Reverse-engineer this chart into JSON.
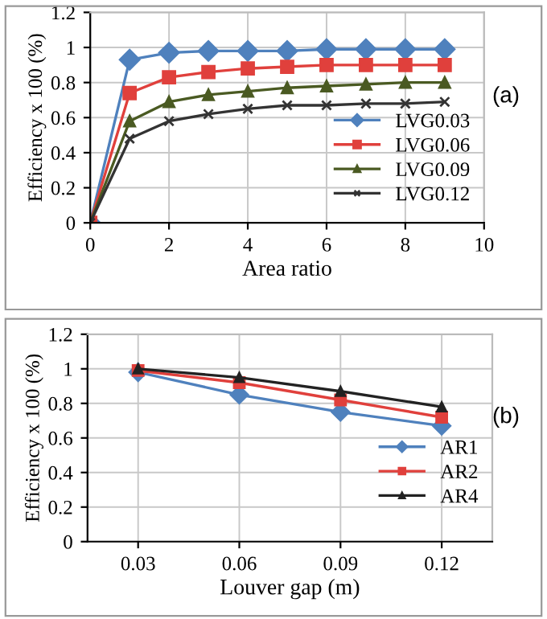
{
  "chart_data": [
    {
      "type": "line",
      "xlabel": "Area ratio",
      "ylabel": "Efficiency x 100 (%)",
      "x": [
        0,
        1,
        2,
        3,
        4,
        5,
        6,
        7,
        8,
        9
      ],
      "xlim": [
        0,
        10
      ],
      "xticks": [
        0,
        2,
        4,
        6,
        8,
        10
      ],
      "ylim": [
        0,
        1.2
      ],
      "yticks": [
        0,
        0.2,
        0.4,
        0.6,
        0.8,
        1,
        1.2
      ],
      "grid": true,
      "legend": "right",
      "annotations": [
        "(a)"
      ],
      "series": [
        {
          "name": "LVG0.03",
          "color": "#4f81bd",
          "marker": "diamond",
          "values": [
            0,
            0.93,
            0.97,
            0.98,
            0.98,
            0.98,
            0.99,
            0.99,
            0.99,
            0.99
          ]
        },
        {
          "name": "LVG0.06",
          "color": "#e0403c",
          "marker": "square",
          "values": [
            0,
            0.74,
            0.83,
            0.86,
            0.88,
            0.89,
            0.9,
            0.9,
            0.9,
            0.9
          ]
        },
        {
          "name": "LVG0.09",
          "color": "#4a5a22",
          "marker": "triangle",
          "values": [
            0,
            0.58,
            0.69,
            0.73,
            0.75,
            0.77,
            0.78,
            0.79,
            0.8,
            0.8
          ]
        },
        {
          "name": "LVG0.12",
          "color": "#333333",
          "marker": "cross",
          "values": [
            0,
            0.48,
            0.58,
            0.62,
            0.65,
            0.67,
            0.67,
            0.68,
            0.68,
            0.69
          ]
        }
      ]
    },
    {
      "type": "line",
      "xlabel": "Louver gap (m)",
      "ylabel": "Efficiency x 100 (%)",
      "categories": [
        "0.03",
        "0.06",
        "0.09",
        "0.12"
      ],
      "ylim": [
        0,
        1.2
      ],
      "yticks": [
        0,
        0.2,
        0.4,
        0.6,
        0.8,
        1,
        1.2
      ],
      "grid": true,
      "legend": "right",
      "annotations": [
        "(b)"
      ],
      "series": [
        {
          "name": "AR1",
          "color": "#4f81bd",
          "marker": "diamond",
          "values": [
            0.98,
            0.85,
            0.75,
            0.67
          ]
        },
        {
          "name": "AR2",
          "color": "#e0403c",
          "marker": "square",
          "values": [
            0.99,
            0.92,
            0.82,
            0.72
          ]
        },
        {
          "name": "AR4",
          "color": "#222222",
          "marker": "triangle",
          "values": [
            1.0,
            0.95,
            0.87,
            0.78
          ]
        }
      ]
    }
  ]
}
